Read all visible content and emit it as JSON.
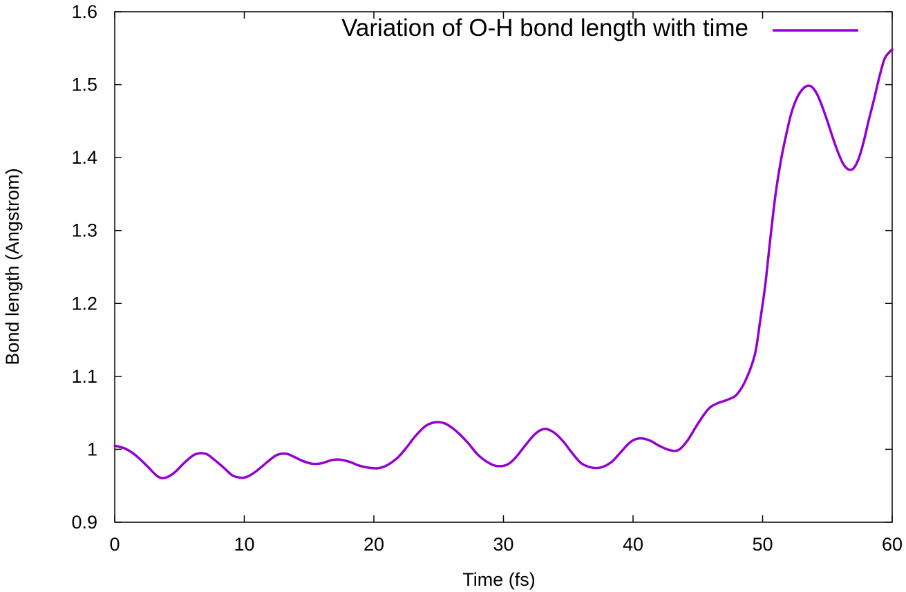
{
  "chart_data": {
    "type": "line",
    "title": "",
    "xlabel": "Time (fs)",
    "ylabel": "Bond length (Angstrom)",
    "xlim": [
      0,
      60
    ],
    "ylim": [
      0.9,
      1.6
    ],
    "x_ticks": [
      0,
      10,
      20,
      30,
      40,
      50,
      60
    ],
    "x_tick_labels": [
      "0",
      "10",
      "20",
      "30",
      "40",
      "50",
      "60"
    ],
    "y_ticks": [
      0.9,
      1.0,
      1.1,
      1.2,
      1.3,
      1.4,
      1.5,
      1.6
    ],
    "y_tick_labels": [
      "0.9",
      "1",
      "1.1",
      "1.2",
      "1.3",
      "1.4",
      "1.5",
      "1.6"
    ],
    "grid": false,
    "legend_position": "top-right",
    "series": [
      {
        "name": "Variation of O-H bond length with time",
        "color": "#9400d3",
        "x": [
          0,
          0.8,
          1.6,
          2.5,
          3.3,
          3.9,
          4.6,
          5.4,
          6.2,
          7.0,
          7.6,
          8.4,
          9.1,
          9.8,
          10.3,
          11.0,
          11.8,
          12.5,
          13.2,
          13.8,
          14.5,
          15.3,
          16.0,
          16.7,
          17.3,
          18.1,
          18.8,
          19.5,
          20.3,
          21.0,
          21.8,
          22.5,
          23.2,
          24.0,
          24.7,
          25.4,
          26.0,
          26.6,
          27.3,
          28.0,
          28.8,
          29.5,
          30.3,
          31.0,
          31.8,
          32.5,
          33.2,
          33.9,
          34.6,
          35.3,
          36.0,
          36.8,
          37.5,
          38.3,
          39.0,
          39.8,
          40.5,
          41.3,
          42.0,
          42.8,
          43.5,
          44.2,
          45.0,
          45.8,
          46.5,
          47.3,
          48.0,
          48.7,
          49.4,
          49.8,
          50.2,
          50.6,
          51.0,
          51.4,
          51.8,
          52.2,
          52.6,
          53.0,
          53.4,
          53.8,
          54.2,
          54.6,
          55.0,
          55.4,
          55.8,
          56.2,
          56.6,
          57.0,
          57.4,
          57.8,
          58.2,
          58.6,
          59.0,
          59.4,
          59.8,
          60.0
        ],
        "y": [
          1.005,
          1.001,
          0.992,
          0.977,
          0.963,
          0.961,
          0.968,
          0.982,
          0.993,
          0.994,
          0.987,
          0.975,
          0.964,
          0.961,
          0.963,
          0.971,
          0.983,
          0.992,
          0.994,
          0.99,
          0.984,
          0.98,
          0.981,
          0.985,
          0.986,
          0.983,
          0.978,
          0.975,
          0.974,
          0.978,
          0.988,
          1.002,
          1.018,
          1.032,
          1.037,
          1.036,
          1.03,
          1.021,
          1.008,
          0.993,
          0.982,
          0.977,
          0.979,
          0.99,
          1.008,
          1.022,
          1.028,
          1.023,
          1.011,
          0.995,
          0.981,
          0.975,
          0.975,
          0.982,
          0.995,
          1.01,
          1.015,
          1.012,
          1.005,
          0.999,
          0.999,
          1.012,
          1.035,
          1.055,
          1.063,
          1.068,
          1.075,
          1.095,
          1.13,
          1.175,
          1.225,
          1.29,
          1.35,
          1.395,
          1.43,
          1.46,
          1.48,
          1.492,
          1.498,
          1.497,
          1.487,
          1.47,
          1.45,
          1.428,
          1.408,
          1.392,
          1.384,
          1.385,
          1.398,
          1.422,
          1.452,
          1.48,
          1.51,
          1.535,
          1.545,
          1.548
        ]
      }
    ]
  }
}
